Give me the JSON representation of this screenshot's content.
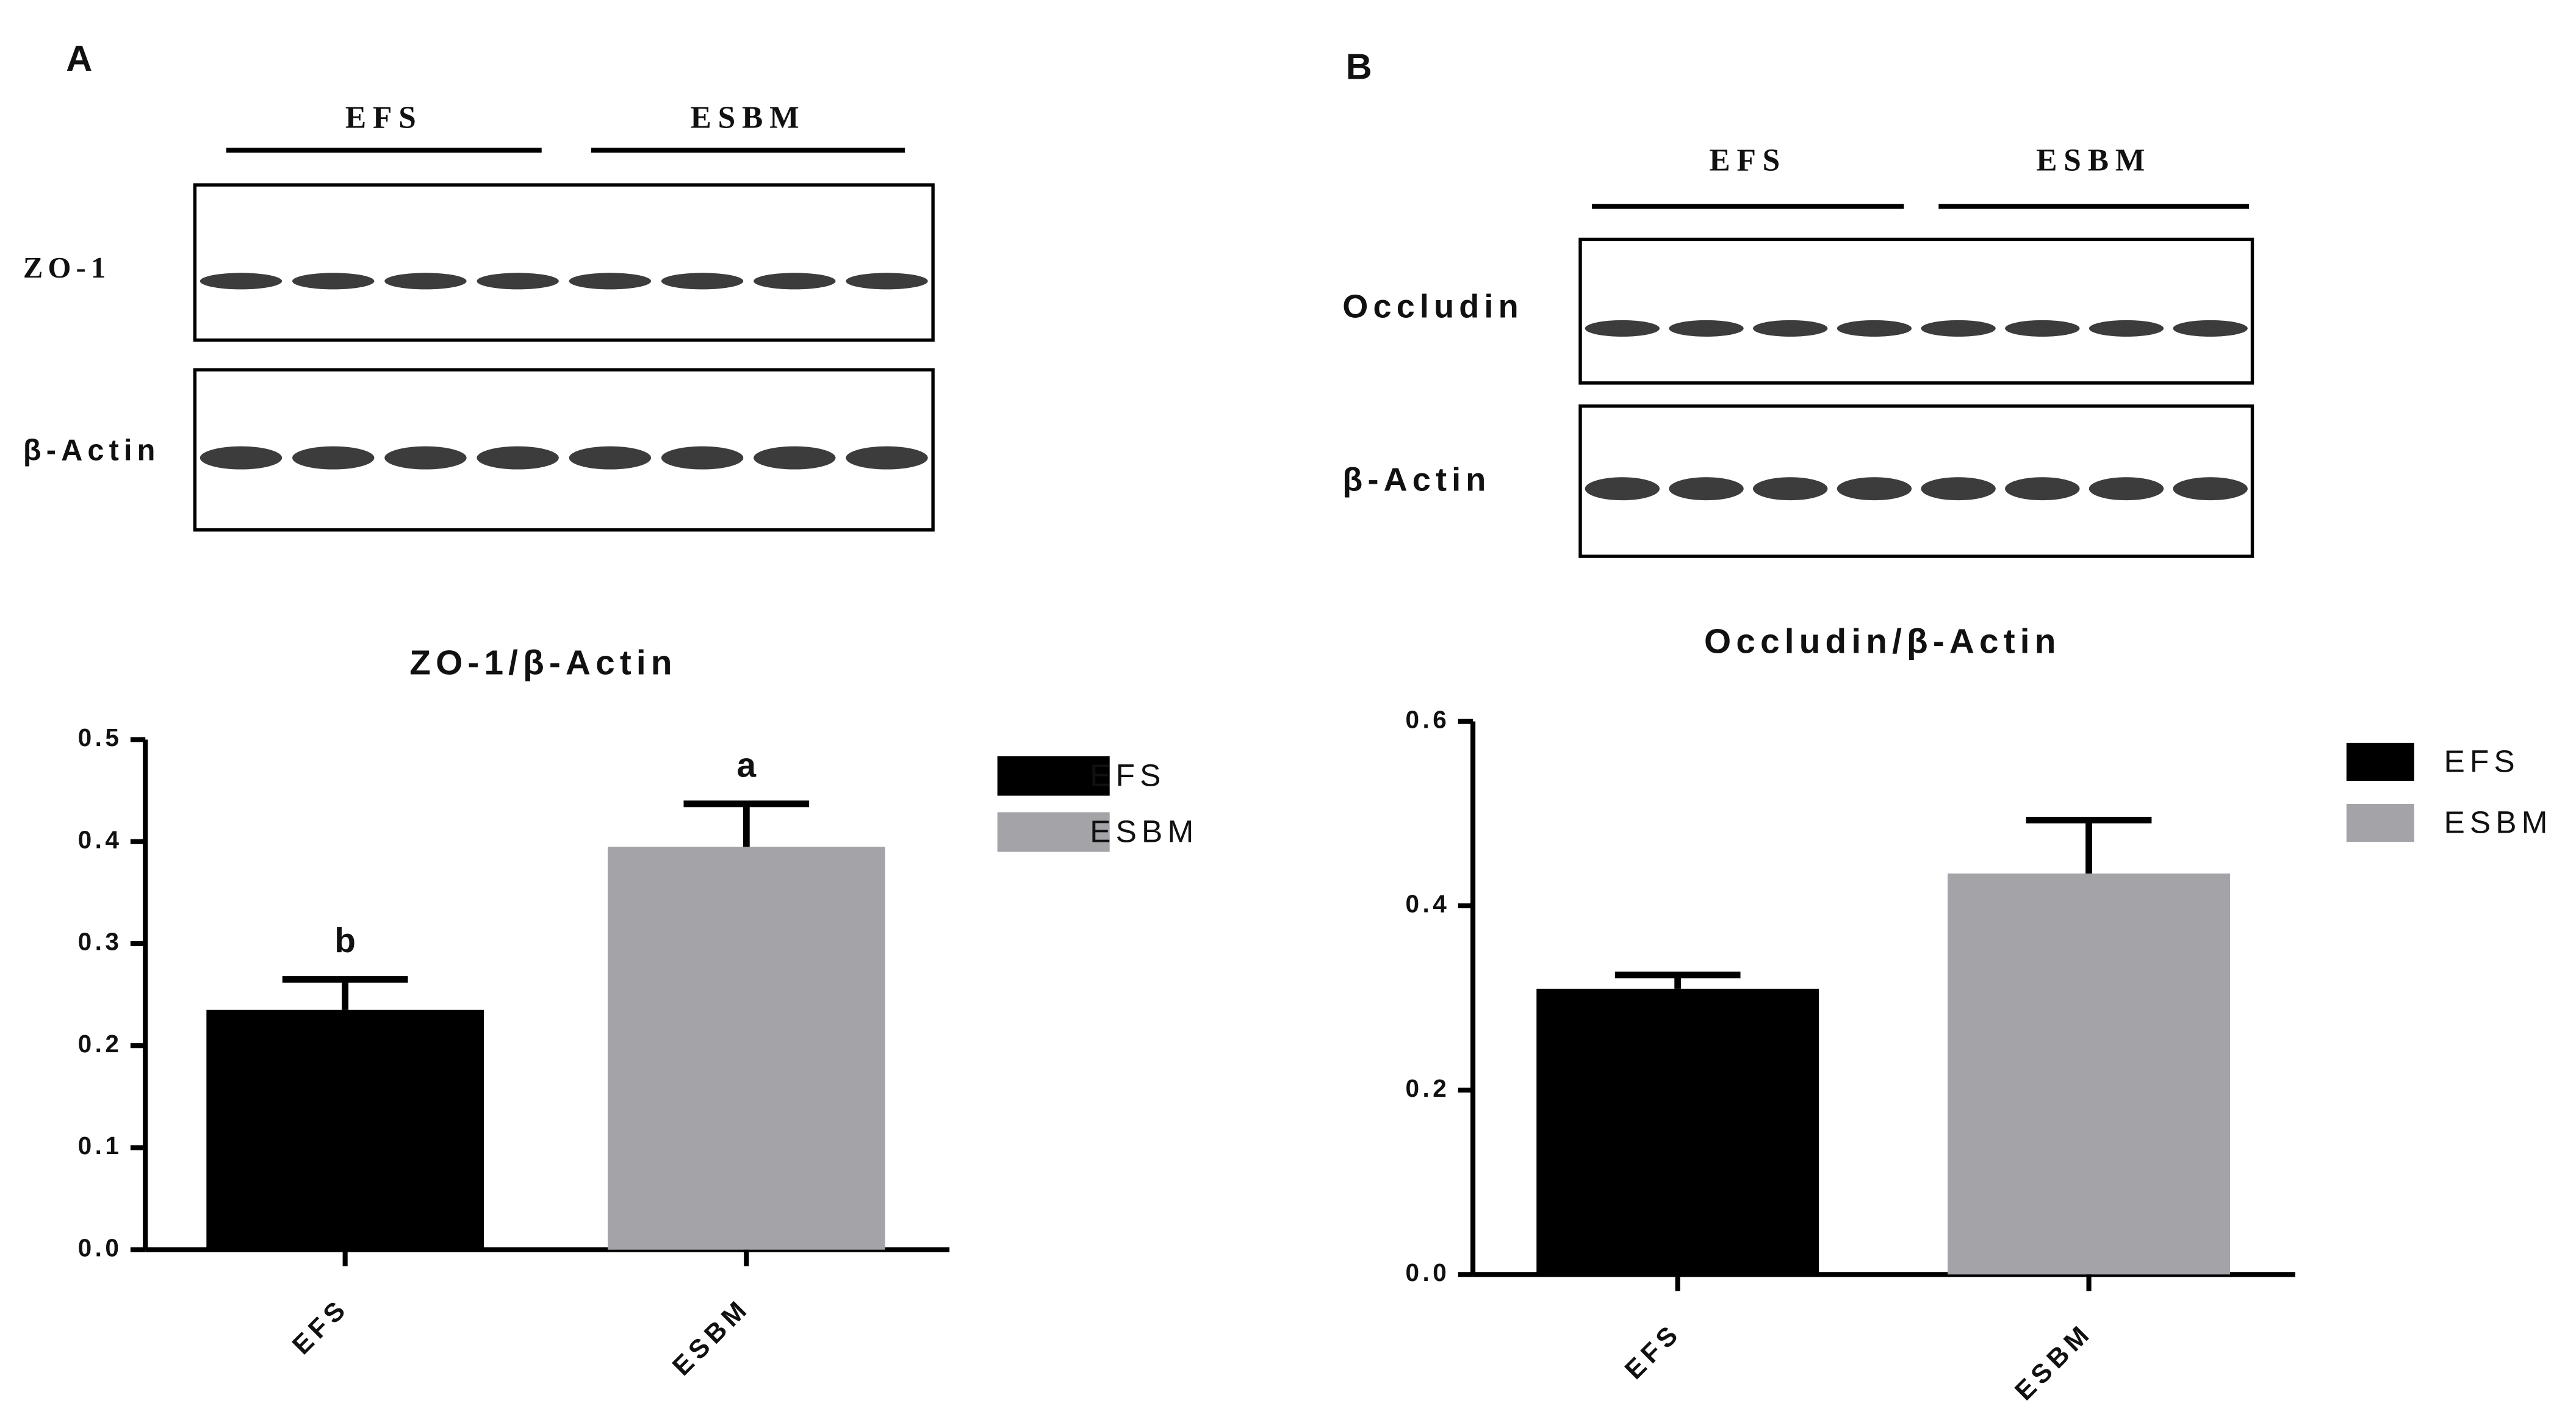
{
  "chart_data": [
    {
      "type": "bar",
      "panel": "A",
      "title": "ZO-1/β-Actin",
      "blot": {
        "groups": [
          "EFS",
          "ESBM"
        ],
        "rows": [
          "ZO-1",
          "β-Actin"
        ]
      },
      "categories": [
        "EFS",
        "ESBM"
      ],
      "values": [
        0.235,
        0.395
      ],
      "errors": [
        0.03,
        0.042
      ],
      "annotations": [
        "b",
        "a"
      ],
      "colors": [
        "#000000",
        "#a3a3a8"
      ],
      "ylim": [
        0,
        0.5
      ],
      "yticks": [
        {
          "value": 0,
          "label": "0.0"
        },
        0.1,
        0.2,
        0.3,
        0.4,
        0.5
      ]
    },
    {
      "type": "bar",
      "panel": "B",
      "title": "Occludin/β-Actin",
      "blot": {
        "groups": [
          "EFS",
          "ESBM"
        ],
        "rows": [
          "Occludin",
          "β-Actin"
        ]
      },
      "categories": [
        "EFS",
        "ESBM"
      ],
      "values": [
        0.31,
        0.435
      ],
      "errors": [
        0.015,
        0.058
      ],
      "colors": [
        "#000000",
        "#a3a3a8"
      ],
      "ylim": [
        0,
        0.6
      ],
      "yticks": [
        {
          "value": 0,
          "label": "0.0"
        },
        0.2,
        0.4,
        0.6
      ]
    }
  ]
}
